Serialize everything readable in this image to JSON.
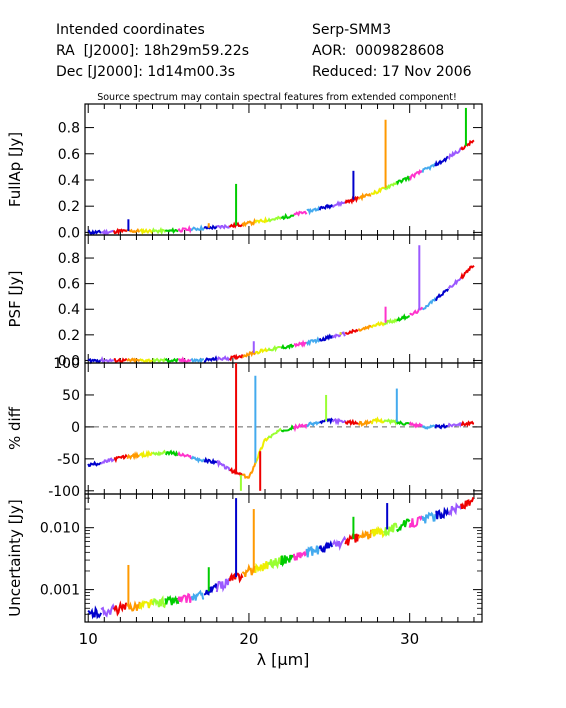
{
  "header": {
    "left": [
      "Intended coordinates",
      "RA  [J2000]: 18h29m59.22s",
      "Dec [J2000]: 1d14m00.3s"
    ],
    "right": [
      "Serp-SMM3",
      "AOR:  0009828608",
      "Reduced: 17 Nov 2006"
    ]
  },
  "note": "Source spectrum may contain spectral features from extended component!",
  "colors": [
    "#0000cc",
    "#9b59ff",
    "#ee0000",
    "#ff9900",
    "#eeee00",
    "#99ff33",
    "#00cc00",
    "#ff33cc",
    "#44aaee"
  ],
  "chart_data": [
    {
      "type": "line",
      "ylabel": "FullAp [Jy]",
      "yscale": "linear",
      "ylim": [
        -0.02,
        0.98
      ],
      "yticks": [
        "0.0",
        "0.2",
        "0.4",
        "0.6",
        "0.8"
      ],
      "ytick_values": [
        0.0,
        0.2,
        0.4,
        0.6,
        0.8
      ],
      "x": [
        10,
        11,
        12,
        13,
        14,
        15,
        16,
        17,
        18,
        19,
        20,
        21,
        22,
        23,
        24,
        25,
        26,
        27,
        28,
        29,
        30,
        31,
        32,
        33,
        34
      ],
      "y": [
        0.0,
        0.0,
        0.01,
        0.01,
        0.01,
        0.01,
        0.02,
        0.03,
        0.04,
        0.05,
        0.07,
        0.09,
        0.11,
        0.14,
        0.17,
        0.2,
        0.23,
        0.27,
        0.31,
        0.37,
        0.42,
        0.48,
        0.54,
        0.62,
        0.7
      ],
      "spikes": [
        [
          12.5,
          0.1
        ],
        [
          17.5,
          0.07
        ],
        [
          19.2,
          0.37
        ],
        [
          26.5,
          0.47
        ],
        [
          28.5,
          0.86
        ],
        [
          33.5,
          0.95
        ]
      ]
    },
    {
      "type": "line",
      "ylabel": "PSF [Jy]",
      "yscale": "linear",
      "ylim": [
        -0.02,
        0.98
      ],
      "yticks": [
        "0.0",
        "0.2",
        "0.4",
        "0.6",
        "0.8"
      ],
      "ytick_values": [
        0.0,
        0.2,
        0.4,
        0.6,
        0.8
      ],
      "x": [
        10,
        11,
        12,
        13,
        14,
        15,
        16,
        17,
        18,
        19,
        20,
        21,
        22,
        23,
        24,
        25,
        26,
        27,
        28,
        29,
        30,
        31,
        32,
        33,
        34
      ],
      "y": [
        0.0,
        0.0,
        0.0,
        0.0,
        0.0,
        0.0,
        0.0,
        0.0,
        0.01,
        0.02,
        0.05,
        0.08,
        0.1,
        0.12,
        0.15,
        0.18,
        0.21,
        0.24,
        0.28,
        0.31,
        0.35,
        0.42,
        0.52,
        0.62,
        0.75
      ],
      "spikes": [
        [
          20.3,
          0.15
        ],
        [
          25.7,
          0.22
        ],
        [
          28.5,
          0.42
        ],
        [
          30.6,
          0.9
        ]
      ]
    },
    {
      "type": "line",
      "ylabel": "% diff",
      "yscale": "linear",
      "ylim": [
        -105,
        100
      ],
      "yticks": [
        "-100",
        "-50",
        "0",
        "50",
        "100"
      ],
      "ytick_values": [
        -100,
        -50,
        0,
        50,
        100
      ],
      "dashed_zero": true,
      "x": [
        10,
        11,
        12,
        13,
        14,
        15,
        16,
        17,
        18,
        19,
        20,
        21,
        22,
        23,
        24,
        25,
        26,
        27,
        28,
        29,
        30,
        31,
        32,
        33,
        34
      ],
      "y": [
        -60,
        -55,
        -48,
        -45,
        -42,
        -40,
        -45,
        -52,
        -55,
        -70,
        -80,
        -20,
        -5,
        0,
        5,
        10,
        8,
        5,
        10,
        8,
        5,
        0,
        0,
        5,
        5
      ],
      "spikes": [
        [
          19.2,
          100
        ],
        [
          19.5,
          -100
        ],
        [
          20.4,
          80
        ],
        [
          20.7,
          -100
        ],
        [
          24.8,
          50
        ],
        [
          29.2,
          60
        ]
      ]
    },
    {
      "type": "line",
      "ylabel": "Uncertainty [Jy]",
      "yscale": "log",
      "ylim": [
        0.0003,
        0.035
      ],
      "yticks": [
        "0.001",
        "0.010"
      ],
      "ytick_values": [
        0.001,
        0.01
      ],
      "x": [
        10,
        11,
        12,
        13,
        14,
        15,
        16,
        17,
        18,
        19,
        20,
        21,
        22,
        23,
        24,
        25,
        26,
        27,
        28,
        29,
        30,
        31,
        32,
        33,
        34
      ],
      "y": [
        0.0004,
        0.00045,
        0.0005,
        0.00055,
        0.0006,
        0.00065,
        0.0007,
        0.0008,
        0.0011,
        0.0015,
        0.002,
        0.0025,
        0.003,
        0.0035,
        0.0042,
        0.005,
        0.006,
        0.0072,
        0.0085,
        0.01,
        0.012,
        0.014,
        0.017,
        0.021,
        0.026
      ],
      "spikes": [
        [
          12.5,
          0.0025
        ],
        [
          17.5,
          0.0023
        ],
        [
          19.2,
          0.03
        ],
        [
          20.3,
          0.02
        ],
        [
          26.5,
          0.015
        ],
        [
          28.6,
          0.025
        ]
      ]
    }
  ],
  "x_axis": {
    "label": "λ [μm]",
    "ticks": [
      "10",
      "20",
      "30"
    ],
    "tick_values": [
      10,
      20,
      30
    ],
    "range": [
      9.8,
      34.5
    ]
  }
}
